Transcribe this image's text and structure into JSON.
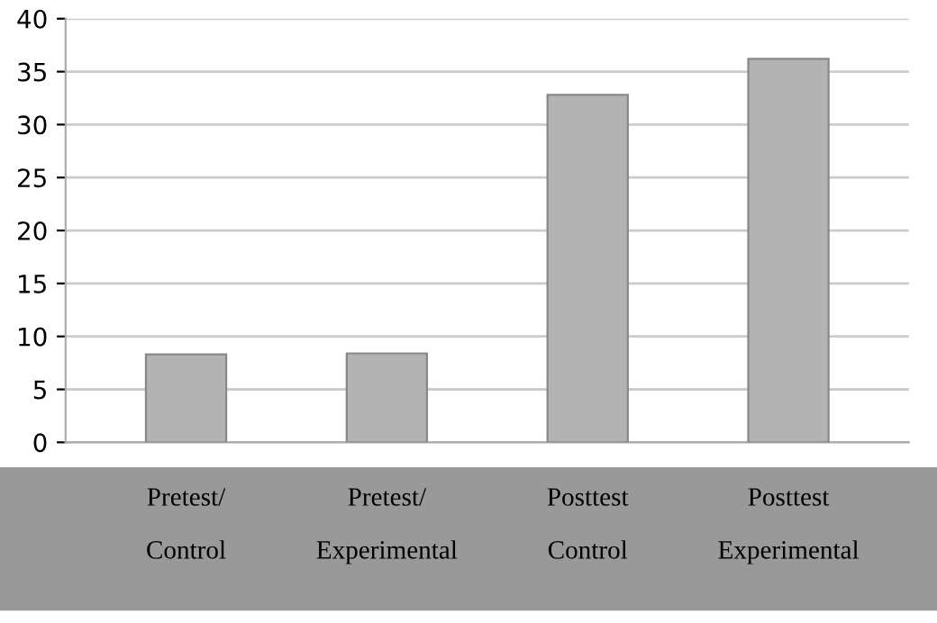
{
  "chart_data": {
    "type": "bar",
    "categories": [
      "Pretest/\nControl",
      "Pretest/\nExperimental",
      "Posttest\nControl",
      "Posttest\nExperimental"
    ],
    "values": [
      8.3,
      8.4,
      32.8,
      36.2
    ],
    "color": "#b3b3b3",
    "ylim": [
      0,
      40
    ],
    "yticks": [
      0,
      5,
      10,
      15,
      20,
      25,
      30,
      35,
      40
    ],
    "grid": "y"
  }
}
